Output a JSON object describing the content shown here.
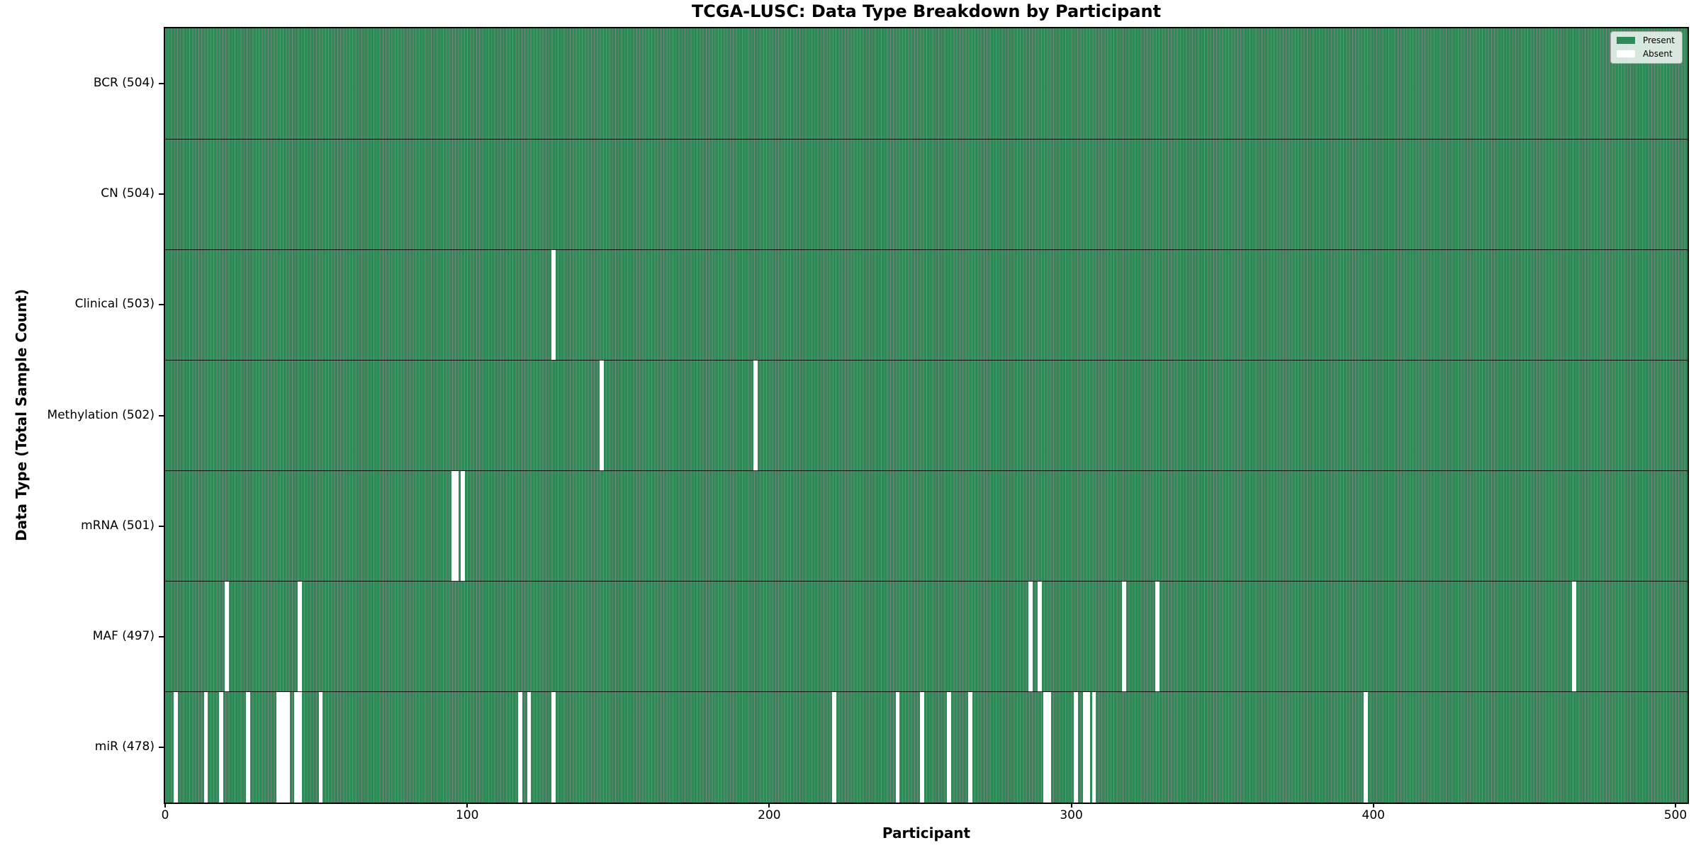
{
  "title": "TCGA-LUSC: Data Type Breakdown by Participant",
  "xlabel": "Participant",
  "ylabel": "Data Type (Total Sample Count)",
  "colors": {
    "present": "#2e8b57",
    "absent": "#ffffff",
    "bar_edge": "rgba(5,30,18,0.55)",
    "axis": "#000000"
  },
  "legend": {
    "items": [
      {
        "name": "present",
        "label": "Present",
        "color": "#2e8b57"
      },
      {
        "name": "absent",
        "label": "Absent",
        "color": "#ffffff"
      }
    ]
  },
  "chart_data": {
    "type": "heatmap",
    "title": "TCGA-LUSC: Data Type Breakdown by Participant",
    "xlabel": "Participant",
    "ylabel": "Data Type (Total Sample Count)",
    "n_participants": 504,
    "x_ticks": [
      0,
      100,
      200,
      300,
      400,
      500
    ],
    "x_tick_labels": [
      "0",
      "100",
      "200",
      "300",
      "400",
      "500"
    ],
    "legend_position": "upper right",
    "grid": false,
    "rows": [
      {
        "name": "bcr",
        "label": "BCR (504)",
        "data_type": "BCR",
        "present_count": 504,
        "absent_participants": []
      },
      {
        "name": "cn",
        "label": "CN (504)",
        "data_type": "CN",
        "present_count": 504,
        "absent_participants": []
      },
      {
        "name": "clinical",
        "label": "Clinical (503)",
        "data_type": "Clinical",
        "present_count": 503,
        "absent_participants": [
          128
        ]
      },
      {
        "name": "methylation",
        "label": "Methylation (502)",
        "data_type": "Methylation",
        "present_count": 502,
        "absent_participants": [
          144,
          195
        ]
      },
      {
        "name": "mrna",
        "label": "mRNA (501)",
        "data_type": "mRNA",
        "present_count": 501,
        "absent_participants": [
          95,
          96,
          98
        ]
      },
      {
        "name": "maf",
        "label": "MAF (497)",
        "data_type": "MAF",
        "present_count": 497,
        "absent_participants": [
          20,
          44,
          286,
          289,
          317,
          328,
          466
        ]
      },
      {
        "name": "mir",
        "label": "miR (478)",
        "data_type": "miR",
        "present_count": 478,
        "absent_participants": [
          3,
          13,
          18,
          27,
          37,
          38,
          39,
          40,
          43,
          44,
          51,
          117,
          120,
          128,
          221,
          242,
          250,
          259,
          266,
          291,
          292,
          301,
          304,
          305,
          307,
          397
        ]
      }
    ]
  }
}
